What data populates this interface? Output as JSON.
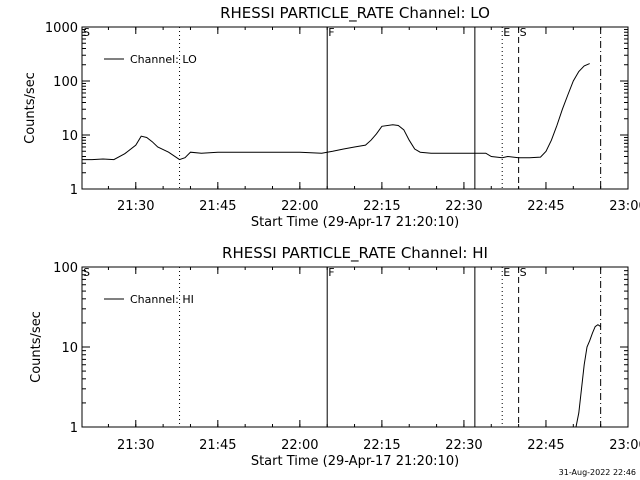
{
  "chart_data": [
    {
      "type": "line",
      "title": "RHESSI PARTICLE_RATE Channel: LO",
      "xlabel": "Start Time (29-Apr-17 21:20:10)",
      "ylabel": "Counts/sec",
      "yscale": "log",
      "ylim": [
        1,
        1000
      ],
      "xlim": [
        "21:20:10",
        "23:00:00"
      ],
      "x_ticks": [
        "21:30",
        "21:45",
        "22:00",
        "22:15",
        "22:30",
        "22:45",
        "23:00"
      ],
      "y_ticks": [
        "1",
        "10",
        "100",
        "1000"
      ],
      "grid": false,
      "legend_position": "top-left",
      "series": [
        {
          "name": "Channel: LO",
          "x": [
            "21:20:10",
            "21:22",
            "21:24",
            "21:26",
            "21:28",
            "21:30",
            "21:31",
            "21:32",
            "21:33",
            "21:34",
            "21:36",
            "21:38",
            "21:39",
            "21:40",
            "21:42",
            "21:45",
            "21:50",
            "21:55",
            "22:00",
            "22:04",
            "22:06",
            "22:08",
            "22:10",
            "22:12",
            "22:13",
            "22:14",
            "22:15",
            "22:17",
            "22:18",
            "22:19",
            "22:20",
            "22:21",
            "22:22",
            "22:24",
            "22:26",
            "22:30",
            "22:34",
            "22:35",
            "22:37",
            "22:38",
            "22:39",
            "22:40",
            "22:42",
            "22:44",
            "22:45",
            "22:46",
            "22:47",
            "22:48",
            "22:49",
            "22:50",
            "22:51",
            "22:52",
            "22:53"
          ],
          "y": [
            3.5,
            3.5,
            3.6,
            3.5,
            4.5,
            6.5,
            9.5,
            9.0,
            7.5,
            6.0,
            4.8,
            3.5,
            3.8,
            4.8,
            4.6,
            4.8,
            4.8,
            4.8,
            4.8,
            4.6,
            5.0,
            5.5,
            6.0,
            6.5,
            8.0,
            10.5,
            14.5,
            15.5,
            15.0,
            12.5,
            8.0,
            5.5,
            4.8,
            4.6,
            4.6,
            4.6,
            4.6,
            4.0,
            3.8,
            4.0,
            3.9,
            3.8,
            3.8,
            3.9,
            5.0,
            8.0,
            15.0,
            30.0,
            55.0,
            100.0,
            150.0,
            190.0,
            210.0
          ]
        }
      ],
      "annotations": [
        {
          "label": "S",
          "x": "21:20:10",
          "style": "solid"
        },
        {
          "label": "",
          "x": "21:38",
          "style": "dotted"
        },
        {
          "label": "F",
          "x": "22:05",
          "style": "solid"
        },
        {
          "label": "",
          "x": "22:32",
          "style": "solid"
        },
        {
          "label": "E",
          "x": "22:37",
          "style": "dotted"
        },
        {
          "label": "S",
          "x": "22:40",
          "style": "dashed"
        },
        {
          "label": "",
          "x": "22:55",
          "style": "dash-dot"
        }
      ]
    },
    {
      "type": "line",
      "title": "RHESSI PARTICLE_RATE Channel: HI",
      "xlabel": "Start Time (29-Apr-17 21:20:10)",
      "ylabel": "Counts/sec",
      "yscale": "log",
      "ylim": [
        1,
        100
      ],
      "xlim": [
        "21:20:10",
        "23:00:00"
      ],
      "x_ticks": [
        "21:30",
        "21:45",
        "22:00",
        "22:15",
        "22:30",
        "22:45",
        "23:00"
      ],
      "y_ticks": [
        "1",
        "10",
        "100"
      ],
      "grid": false,
      "legend_position": "top-left",
      "series": [
        {
          "name": "Channel: HI",
          "x": [
            "22:50:30",
            "22:51",
            "22:51:30",
            "22:52",
            "22:52:30",
            "22:53",
            "22:53:30",
            "22:54",
            "22:54:30",
            "22:55"
          ],
          "y": [
            1.0,
            1.5,
            3.0,
            6.0,
            10.0,
            12.0,
            15.0,
            18.0,
            19.0,
            18.0
          ]
        }
      ],
      "annotations": [
        {
          "label": "S",
          "x": "21:20:10",
          "style": "solid"
        },
        {
          "label": "",
          "x": "21:38",
          "style": "dotted"
        },
        {
          "label": "F",
          "x": "22:05",
          "style": "solid"
        },
        {
          "label": "",
          "x": "22:32",
          "style": "solid"
        },
        {
          "label": "E",
          "x": "22:37",
          "style": "dotted"
        },
        {
          "label": "S",
          "x": "22:40",
          "style": "dashed"
        },
        {
          "label": "",
          "x": "22:55",
          "style": "dash-dot"
        }
      ]
    }
  ],
  "timestamp": "31-Aug-2022 22:46"
}
